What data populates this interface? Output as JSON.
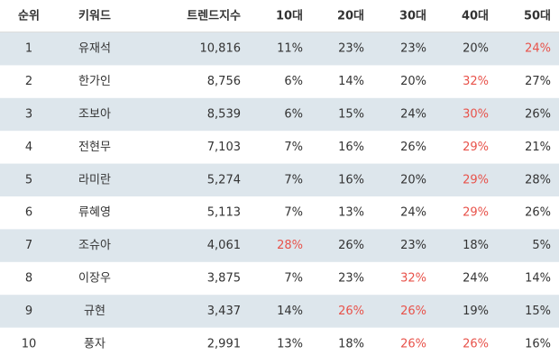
{
  "table": {
    "header": [
      "순위",
      "키워드",
      "트렌드지수",
      "10대",
      "20대",
      "30대",
      "40대",
      "50대"
    ],
    "rows": [
      [
        "1",
        "유재석",
        "10,816",
        "11%",
        "23%",
        "23%",
        "20%",
        "24%"
      ],
      [
        "2",
        "한가인",
        "8,756",
        "6%",
        "14%",
        "20%",
        "32%",
        "27%"
      ],
      [
        "3",
        "조보아",
        "8,539",
        "6%",
        "15%",
        "24%",
        "30%",
        "26%"
      ],
      [
        "4",
        "전현무",
        "7,103",
        "7%",
        "16%",
        "26%",
        "29%",
        "21%"
      ],
      [
        "5",
        "라미란",
        "5,274",
        "7%",
        "16%",
        "20%",
        "29%",
        "28%"
      ],
      [
        "6",
        "류혜영",
        "5,113",
        "7%",
        "13%",
        "24%",
        "29%",
        "26%"
      ],
      [
        "7",
        "조슈아",
        "4,061",
        "28%",
        "26%",
        "23%",
        "18%",
        "5%"
      ],
      [
        "8",
        "이장우",
        "3,875",
        "7%",
        "23%",
        "32%",
        "24%",
        "14%"
      ],
      [
        "9",
        "규현",
        "3,437",
        "14%",
        "26%",
        "26%",
        "19%",
        "15%"
      ],
      [
        "10",
        "풍자",
        "2,991",
        "13%",
        "18%",
        "26%",
        "26%",
        "16%"
      ]
    ],
    "highlight": [
      [
        7
      ],
      [
        6
      ],
      [
        6
      ],
      [
        6
      ],
      [
        6
      ],
      [
        6
      ],
      [
        3
      ],
      [
        5
      ],
      [
        4,
        5
      ],
      [
        5,
        6
      ]
    ],
    "highlight_color": "#e8524a",
    "band_color": "#dde6ec"
  }
}
